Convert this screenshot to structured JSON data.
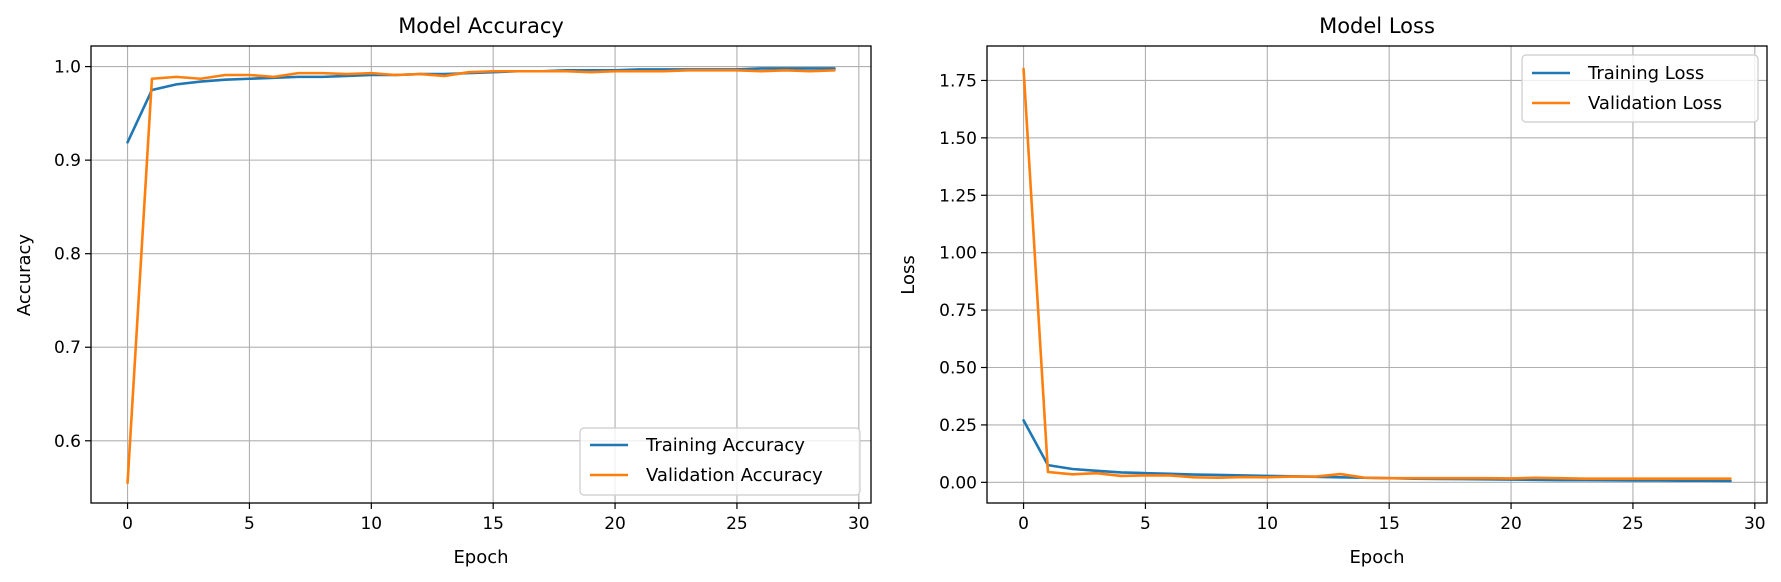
{
  "chart_data": [
    {
      "type": "line",
      "title": "Model Accuracy",
      "xlabel": "Epoch",
      "ylabel": "Accuracy",
      "xlim": [
        -1.5,
        30.5
      ],
      "ylim": [
        0.5335,
        1.022
      ],
      "xticks": [
        0,
        5,
        10,
        15,
        20,
        25,
        30
      ],
      "yticks": [
        0.6,
        0.7,
        0.8,
        0.9,
        1.0
      ],
      "ytick_decimals": 1,
      "grid": true,
      "legend_position": "lower-right",
      "x": [
        0,
        1,
        2,
        3,
        4,
        5,
        6,
        7,
        8,
        9,
        10,
        11,
        12,
        13,
        14,
        15,
        16,
        17,
        18,
        19,
        20,
        21,
        22,
        23,
        24,
        25,
        26,
        27,
        28,
        29
      ],
      "series": [
        {
          "name": "Training Accuracy",
          "color": "#1f77b4",
          "values": [
            0.919,
            0.975,
            0.981,
            0.984,
            0.986,
            0.987,
            0.988,
            0.989,
            0.989,
            0.99,
            0.991,
            0.991,
            0.992,
            0.992,
            0.993,
            0.994,
            0.995,
            0.995,
            0.996,
            0.996,
            0.996,
            0.997,
            0.997,
            0.997,
            0.997,
            0.997,
            0.998,
            0.998,
            0.998,
            0.998
          ]
        },
        {
          "name": "Validation Accuracy",
          "color": "#ff7f0e",
          "values": [
            0.555,
            0.987,
            0.989,
            0.987,
            0.991,
            0.991,
            0.989,
            0.993,
            0.993,
            0.992,
            0.993,
            0.991,
            0.992,
            0.99,
            0.994,
            0.995,
            0.995,
            0.995,
            0.995,
            0.994,
            0.995,
            0.995,
            0.995,
            0.996,
            0.996,
            0.996,
            0.995,
            0.996,
            0.995,
            0.996
          ]
        }
      ]
    },
    {
      "type": "line",
      "title": "Model Loss",
      "xlabel": "Epoch",
      "ylabel": "Loss",
      "xlim": [
        -1.5,
        30.5
      ],
      "ylim": [
        -0.09,
        1.9
      ],
      "xticks": [
        0,
        5,
        10,
        15,
        20,
        25,
        30
      ],
      "yticks": [
        0.0,
        0.25,
        0.5,
        0.75,
        1.0,
        1.25,
        1.5,
        1.75
      ],
      "ytick_decimals": 2,
      "grid": true,
      "legend_position": "upper-right",
      "x": [
        0,
        1,
        2,
        3,
        4,
        5,
        6,
        7,
        8,
        9,
        10,
        11,
        12,
        13,
        14,
        15,
        16,
        17,
        18,
        19,
        20,
        21,
        22,
        23,
        24,
        25,
        26,
        27,
        28,
        29
      ],
      "series": [
        {
          "name": "Training Loss",
          "color": "#1f77b4",
          "values": [
            0.27,
            0.075,
            0.058,
            0.05,
            0.043,
            0.04,
            0.037,
            0.034,
            0.032,
            0.03,
            0.028,
            0.026,
            0.024,
            0.022,
            0.02,
            0.018,
            0.016,
            0.015,
            0.014,
            0.013,
            0.012,
            0.011,
            0.01,
            0.01,
            0.009,
            0.008,
            0.008,
            0.007,
            0.007,
            0.006
          ]
        },
        {
          "name": "Validation Loss",
          "color": "#ff7f0e",
          "values": [
            1.8,
            0.045,
            0.035,
            0.04,
            0.028,
            0.03,
            0.03,
            0.022,
            0.02,
            0.023,
            0.022,
            0.025,
            0.025,
            0.036,
            0.02,
            0.018,
            0.018,
            0.018,
            0.018,
            0.018,
            0.017,
            0.02,
            0.018,
            0.016,
            0.016,
            0.016,
            0.016,
            0.016,
            0.016,
            0.016
          ]
        }
      ]
    }
  ]
}
